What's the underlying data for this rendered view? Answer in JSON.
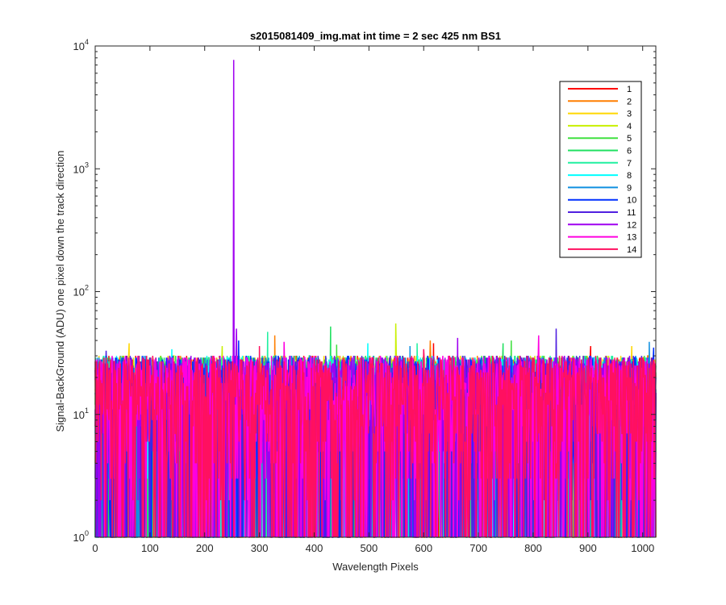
{
  "chart_data": {
    "type": "line",
    "title": "s2015081409_img.mat int time = 2 sec  425 nm BS1",
    "xlabel": "Wavelength Pixels",
    "ylabel": "Signal-BackGround (ADU) one pixel down the track direction",
    "xlim": [
      0,
      1024
    ],
    "ylim": [
      1,
      10000
    ],
    "yscale": "log",
    "xticks": [
      "0",
      "100",
      "200",
      "300",
      "400",
      "500",
      "600",
      "700",
      "800",
      "900",
      "1000"
    ],
    "yticks": [
      {
        "base": "10",
        "exp": "0"
      },
      {
        "base": "10",
        "exp": "1"
      },
      {
        "base": "10",
        "exp": "2"
      },
      {
        "base": "10",
        "exp": "3"
      },
      {
        "base": "10",
        "exp": "4"
      }
    ],
    "grid": false,
    "legend_position": "top-right",
    "series": [
      {
        "name": "1",
        "color": "#ff0000",
        "typical": [
          2,
          30
        ],
        "peaks": [
          {
            "x": 618,
            "y": 38
          },
          {
            "x": 905,
            "y": 36
          }
        ]
      },
      {
        "name": "2",
        "color": "#ff7f00",
        "typical": [
          2,
          30
        ],
        "peaks": [
          {
            "x": 328,
            "y": 44
          },
          {
            "x": 612,
            "y": 40
          }
        ]
      },
      {
        "name": "3",
        "color": "#ffd700",
        "typical": [
          2,
          30
        ],
        "peaks": [
          {
            "x": 62,
            "y": 38
          },
          {
            "x": 980,
            "y": 36
          }
        ]
      },
      {
        "name": "4",
        "color": "#c8f000",
        "typical": [
          2,
          30
        ],
        "peaks": [
          {
            "x": 549,
            "y": 55
          },
          {
            "x": 232,
            "y": 36
          }
        ]
      },
      {
        "name": "5",
        "color": "#40e040",
        "typical": [
          2,
          30
        ],
        "peaks": [
          {
            "x": 441,
            "y": 37
          },
          {
            "x": 760,
            "y": 40
          }
        ]
      },
      {
        "name": "6",
        "color": "#20e060",
        "typical": [
          2,
          30
        ],
        "peaks": [
          {
            "x": 430,
            "y": 52
          },
          {
            "x": 745,
            "y": 38
          }
        ]
      },
      {
        "name": "7",
        "color": "#20f0a0",
        "typical": [
          2,
          30
        ],
        "peaks": [
          {
            "x": 315,
            "y": 47
          },
          {
            "x": 588,
            "y": 38
          }
        ]
      },
      {
        "name": "8",
        "color": "#00ffff",
        "typical": [
          2,
          30
        ],
        "peaks": [
          {
            "x": 498,
            "y": 38
          },
          {
            "x": 140,
            "y": 34
          }
        ]
      },
      {
        "name": "9",
        "color": "#1090e0",
        "typical": [
          2,
          30
        ],
        "peaks": [
          {
            "x": 1012,
            "y": 39
          },
          {
            "x": 575,
            "y": 36
          }
        ]
      },
      {
        "name": "10",
        "color": "#0030ff",
        "typical": [
          2,
          30
        ],
        "peaks": [
          {
            "x": 262,
            "y": 40
          },
          {
            "x": 1020,
            "y": 35
          }
        ]
      },
      {
        "name": "11",
        "color": "#5020e0",
        "typical": [
          2,
          30
        ],
        "peaks": [
          {
            "x": 842,
            "y": 50
          },
          {
            "x": 20,
            "y": 33
          }
        ]
      },
      {
        "name": "12",
        "color": "#a000f0",
        "typical": [
          2,
          30
        ],
        "peaks": [
          {
            "x": 253,
            "y": 7700
          },
          {
            "x": 258,
            "y": 50
          },
          {
            "x": 662,
            "y": 42
          }
        ]
      },
      {
        "name": "13",
        "color": "#ff00e0",
        "typical": [
          2,
          30
        ],
        "peaks": [
          {
            "x": 810,
            "y": 44
          },
          {
            "x": 345,
            "y": 39
          }
        ]
      },
      {
        "name": "14",
        "color": "#ff1060",
        "typical": [
          2,
          30
        ],
        "peaks": [
          {
            "x": 300,
            "y": 36
          },
          {
            "x": 600,
            "y": 34
          }
        ]
      }
    ]
  }
}
